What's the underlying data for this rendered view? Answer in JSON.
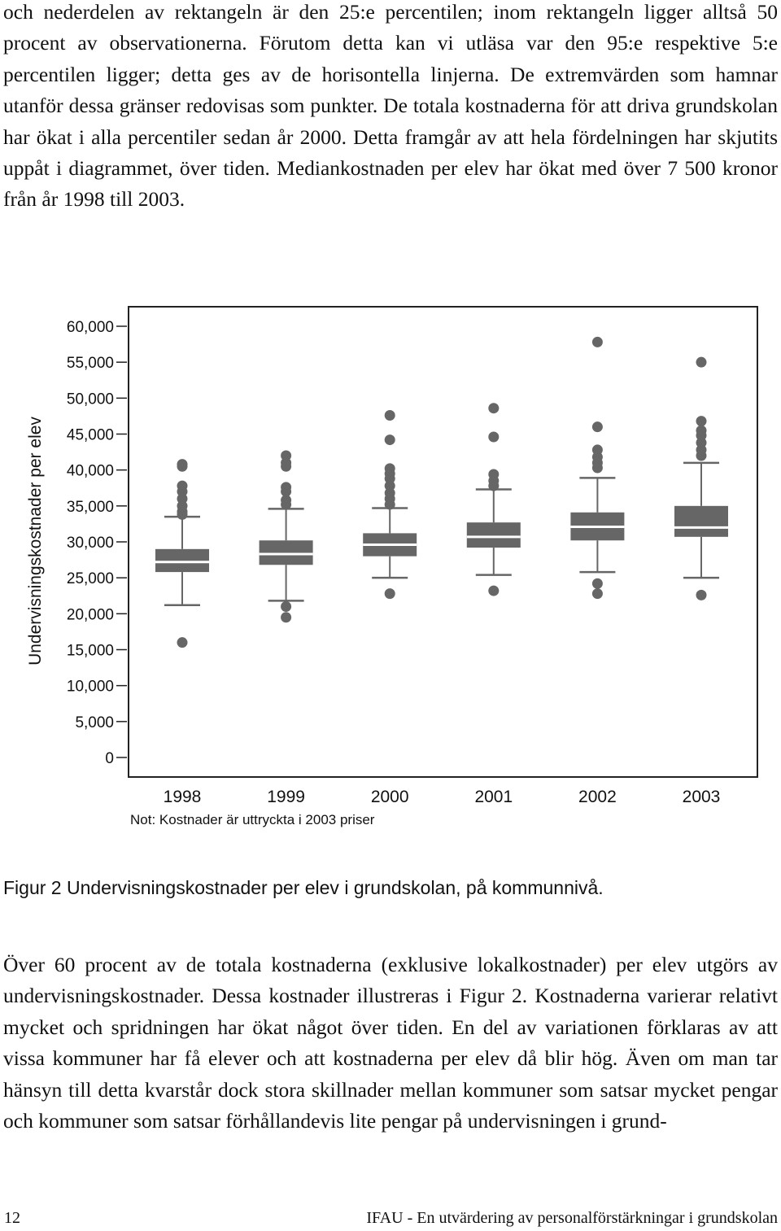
{
  "text": {
    "para_top": "och nederdelen av rektangeln är den 25:e percentilen; inom rektangeln ligger alltså 50 procent av observationerna. Förutom detta kan vi utläsa var den 95:e respektive 5:e percentilen ligger; detta ges av de horisontella linjerna. De extremvärden som hamnar utanför dessa gränser redovisas som punkter. De totala kostnaderna för att driva grundskolan har ökat i alla percentiler sedan år 2000. Detta framgår av att hela fördelningen har skjutits uppåt i diagrammet, över tiden. Mediankostnaden per elev har ökat med över 7 500 kronor från år 1998 till 2003.",
    "figure_caption": "Figur 2 Undervisningskostnader per elev i grundskolan, på kommunnivå.",
    "para_bottom": "Över 60 procent av de totala kostnaderna (exklusive lokalkostnader) per elev utgörs av undervisningskostnader. Dessa kostnader illustreras i Figur 2. Kostnaderna varierar relativt mycket och spridningen har ökat något över tiden. En del av variationen förklaras av att vissa kommuner har få elever och att kostnaderna per elev då blir hög. Även om man tar hänsyn till detta kvarstår dock stora skillnader mellan kommuner som satsar mycket pengar och kommuner som satsar förhållandevis lite pengar på undervisningen i grund-",
    "page_number": "12",
    "running_header": "IFAU - En utvärdering av personalförstärkningar i grundskolan"
  },
  "chart_data": {
    "type": "box",
    "ylabel": "Undervisningskostnader per elev",
    "note": "Not: Kostnader är uttryckta i 2003 priser",
    "ylim": [
      0,
      60000
    ],
    "yticks": [
      0,
      5000,
      10000,
      15000,
      20000,
      25000,
      30000,
      35000,
      40000,
      45000,
      50000,
      55000,
      60000
    ],
    "ytick_labels": [
      "0",
      "5,000",
      "10,000",
      "15,000",
      "20,000",
      "25,000",
      "30,000",
      "35,000",
      "40,000",
      "45,000",
      "50,000",
      "55,000",
      "60,000"
    ],
    "grid": false,
    "color": "#666666",
    "categories": [
      "1998",
      "1999",
      "2000",
      "2001",
      "2002",
      "2003"
    ],
    "boxes": [
      {
        "year": "1998",
        "whisker_low": 21200,
        "q1": 25800,
        "median": 27200,
        "q3": 29000,
        "whisker_high": 33500,
        "outliers": [
          16000,
          33800,
          34200,
          35000,
          36000,
          37000,
          37800,
          40500,
          40800
        ]
      },
      {
        "year": "1999",
        "whisker_low": 21800,
        "q1": 26800,
        "median": 28300,
        "q3": 30200,
        "whisker_high": 34600,
        "outliers": [
          19500,
          21000,
          35200,
          35800,
          37000,
          37600,
          40500,
          41000,
          42000
        ]
      },
      {
        "year": "2000",
        "whisker_low": 25000,
        "q1": 28000,
        "median": 29600,
        "q3": 31200,
        "whisker_high": 34700,
        "outliers": [
          22800,
          35200,
          36000,
          36800,
          37800,
          38800,
          39500,
          40200,
          44200,
          47600
        ]
      },
      {
        "year": "2001",
        "whisker_low": 25400,
        "q1": 29200,
        "median": 30700,
        "q3": 32700,
        "whisker_high": 37300,
        "outliers": [
          23200,
          37800,
          38500,
          39400,
          44600,
          48600
        ]
      },
      {
        "year": "2002",
        "whisker_low": 25800,
        "q1": 30200,
        "median": 32100,
        "q3": 34100,
        "whisker_high": 38900,
        "outliers": [
          22800,
          24200,
          40300,
          41000,
          41800,
          42800,
          46000,
          57800
        ]
      },
      {
        "year": "2003",
        "whisker_low": 25000,
        "q1": 30700,
        "median": 32000,
        "q3": 35000,
        "whisker_high": 41000,
        "outliers": [
          22600,
          42000,
          42800,
          43800,
          44800,
          45500,
          46800,
          55000
        ]
      }
    ]
  }
}
